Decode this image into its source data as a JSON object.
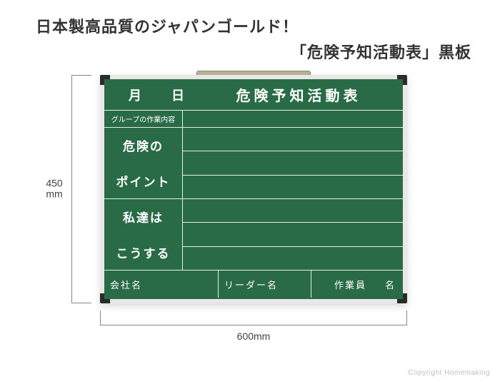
{
  "heading": {
    "line1": "日本製高品質のジャパンゴールド！",
    "line2": "「危険予知活動表」黒板"
  },
  "dimensions": {
    "height_label": "450\nmm",
    "width_label": "600mm"
  },
  "board": {
    "colors": {
      "surface": "#2a6b47",
      "line": "#e4eee8",
      "frame": "#e8e8e6",
      "corner": "#2b2b2b",
      "hanger": "#b9b49a",
      "text": "#ffffff"
    },
    "header": {
      "date_units": "月　日",
      "title": "危険予知活動表"
    },
    "group_row_label": "グループの作業内容",
    "left_labels": [
      "危険の",
      "ポイント",
      "私達は",
      "こうする"
    ],
    "right_line_count": 6,
    "footer": {
      "company": "会社名",
      "leader": "リーダー名",
      "worker_prefix": "作業員",
      "worker_suffix": "名"
    }
  },
  "copyright": "Copyright Homemaking"
}
